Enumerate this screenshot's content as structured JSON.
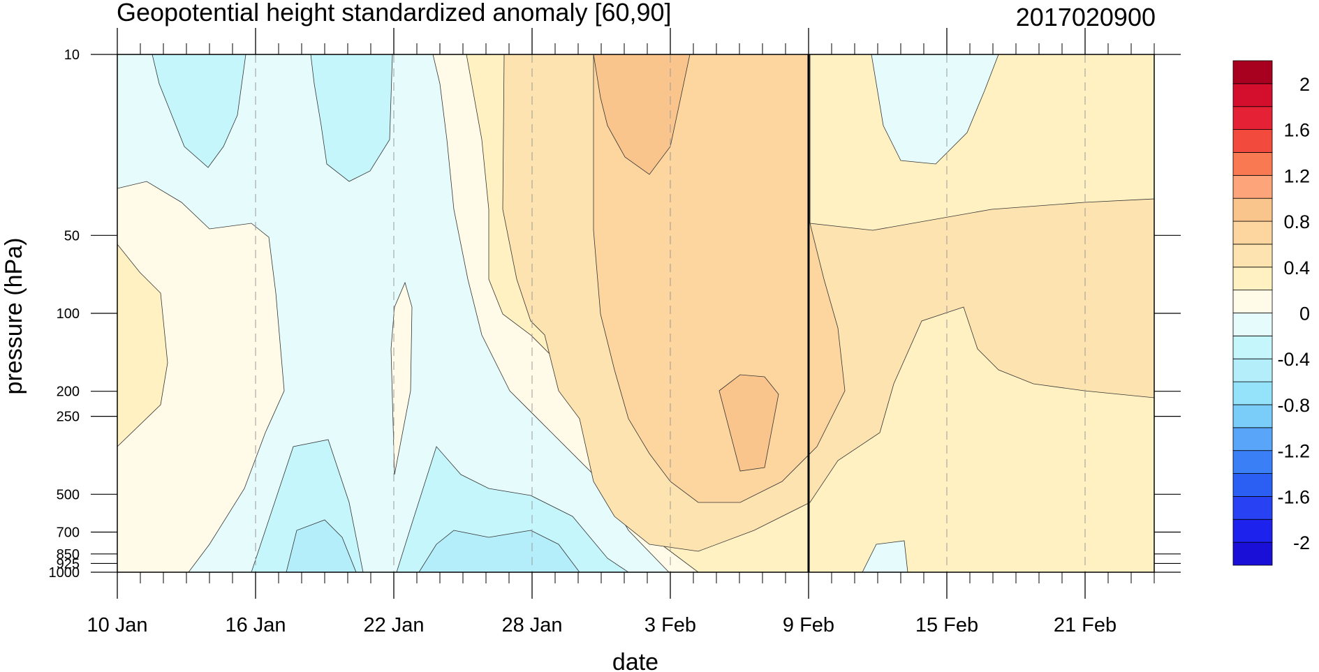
{
  "chart_data": {
    "type": "heatmap",
    "title": "Geopotential height standardized anomaly [60,90]",
    "subtitle": "2017020900",
    "xlabel": "date",
    "ylabel": "pressure (hPa)",
    "x_axis": {
      "kind": "date",
      "start": "2017-01-10",
      "end": "2017-02-24",
      "tick_dates": [
        "2017-01-10",
        "2017-01-16",
        "2017-01-22",
        "2017-01-28",
        "2017-02-03",
        "2017-02-09",
        "2017-02-15",
        "2017-02-21"
      ],
      "tick_labels": [
        "10 Jan",
        "16 Jan",
        "22 Jan",
        "28 Jan",
        "3 Feb",
        "9 Feb",
        "15 Feb",
        "21 Feb"
      ],
      "vertical_gridlines": "dashed gray at labelled dates"
    },
    "y_axis": {
      "scale": "log",
      "inverted": true,
      "range": [
        10,
        1000
      ],
      "ticks": [
        10,
        50,
        100,
        200,
        250,
        500,
        700,
        850,
        925,
        1000
      ],
      "tick_labels": [
        "10",
        "50",
        "100",
        "200",
        "250",
        "500",
        "700",
        "850",
        "925",
        "1000"
      ]
    },
    "analysis_date_marker": "2017-02-09",
    "colorbar": {
      "position": "right",
      "levels": [
        -2.2,
        -2.0,
        -1.8,
        -1.6,
        -1.4,
        -1.2,
        -1.0,
        -0.8,
        -0.6,
        -0.4,
        -0.2,
        0.0,
        0.2,
        0.4,
        0.6,
        0.8,
        1.0,
        1.2,
        1.4,
        1.6,
        1.8,
        2.0,
        2.2
      ],
      "labels": [
        "-2",
        "-1.6",
        "-1.2",
        "-0.8",
        "-0.4",
        "0",
        "0.4",
        "0.8",
        "1.2",
        "1.6",
        "2"
      ],
      "label_values": [
        -2,
        -1.6,
        -1.2,
        -0.8,
        -0.4,
        0,
        0.4,
        0.8,
        1.2,
        1.6,
        2
      ],
      "colors": [
        "#1a0fd6",
        "#1d22ed",
        "#2841f2",
        "#2b5ff4",
        "#3b7ff6",
        "#58a5fa",
        "#79cdf8",
        "#95e3fa",
        "#b4eefb",
        "#c5f6fc",
        "#e5fbfc",
        "#fffbe8",
        "#fff1c2",
        "#fde3b0",
        "#fcd59f",
        "#fac58c",
        "#fda47a",
        "#f97a52",
        "#f24a3d",
        "#e52135",
        "#d40f2d",
        "#a8001f"
      ]
    },
    "field": {
      "description": "standardized anomaly by date and pressure level",
      "values": [
        [
          -0.3,
          -0.15,
          -0.1,
          0.2,
          0.15
        ],
        [
          -0.45,
          -0.1,
          0.05,
          0.1,
          0.2
        ],
        [
          -0.3,
          -0.1,
          0.05,
          0.05,
          -0.2
        ],
        [
          -0.1,
          -0.1,
          -0.1,
          -0.3,
          -0.5
        ],
        [
          0.1,
          0.3,
          0.5,
          0.5,
          0.5
        ],
        [
          0.7,
          0.6,
          0.7,
          1.0,
          0.6
        ],
        [
          0.3,
          0.5,
          0.5,
          0.45,
          0.35
        ],
        [
          -0.3,
          0.1,
          0.3,
          0.35,
          0.1
        ],
        [
          0.1,
          0.35,
          0.45,
          0.4,
          0.15
        ]
      ]
    }
  }
}
